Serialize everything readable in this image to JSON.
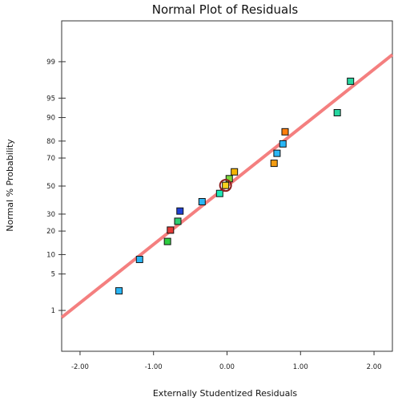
{
  "chart_data": {
    "type": "scatter",
    "title": "Normal Plot of Residuals",
    "xlabel": "Externally Studentized Residuals",
    "ylabel": "Normal % Probability",
    "x_ticks": [
      -2.0,
      -1.0,
      0.0,
      1.0,
      2.0
    ],
    "x_tick_labels": [
      "-2.00",
      "-1.00",
      "0.00",
      "1.00",
      "2.00"
    ],
    "xlim": [
      -2.25,
      2.25
    ],
    "y_scale": "normal-probability",
    "y_ticks": [
      1,
      5,
      10,
      20,
      30,
      50,
      70,
      80,
      90,
      95,
      99
    ],
    "y_tick_labels": [
      "1",
      "5",
      "10",
      "20",
      "30",
      "50",
      "70",
      "80",
      "90",
      "95",
      "99"
    ],
    "ylim_percent": [
      0.1,
      99.9
    ],
    "grid": false,
    "fit_line": {
      "color": "#f47f7f",
      "points": [
        [
          -2.25,
          0.7
        ],
        [
          2.25,
          99.3
        ]
      ]
    },
    "points": [
      {
        "x": -1.47,
        "y": 2.5,
        "color": "#29b6f6"
      },
      {
        "x": -1.19,
        "y": 8.5,
        "color": "#29b6f6"
      },
      {
        "x": -0.81,
        "y": 15.0,
        "color": "#2ecc40"
      },
      {
        "x": -0.77,
        "y": 20.5,
        "color": "#e53935"
      },
      {
        "x": -0.67,
        "y": 25.5,
        "color": "#2ecc71"
      },
      {
        "x": -0.64,
        "y": 32.0,
        "color": "#1e3fd6"
      },
      {
        "x": -0.34,
        "y": 38.5,
        "color": "#29b6f6"
      },
      {
        "x": -0.1,
        "y": 44.5,
        "color": "#1de9b6"
      },
      {
        "x": -0.02,
        "y": 50.5,
        "color": "#f7d21e"
      },
      {
        "x": 0.03,
        "y": 55.5,
        "color": "#7bd63c"
      },
      {
        "x": 0.1,
        "y": 60.5,
        "color": "#f5b400"
      },
      {
        "x": 0.64,
        "y": 66.5,
        "color": "#f39c12"
      },
      {
        "x": 0.68,
        "y": 73.0,
        "color": "#29b6f6"
      },
      {
        "x": 0.76,
        "y": 78.5,
        "color": "#29b6f6"
      },
      {
        "x": 0.79,
        "y": 84.5,
        "color": "#ff7f0e"
      },
      {
        "x": 1.5,
        "y": 91.5,
        "color": "#26d7a0"
      },
      {
        "x": 1.68,
        "y": 97.5,
        "color": "#26d7a0"
      }
    ],
    "highlight_point": {
      "x": -0.02,
      "y": 50.5,
      "ring_color": "#8b1a1a"
    }
  }
}
